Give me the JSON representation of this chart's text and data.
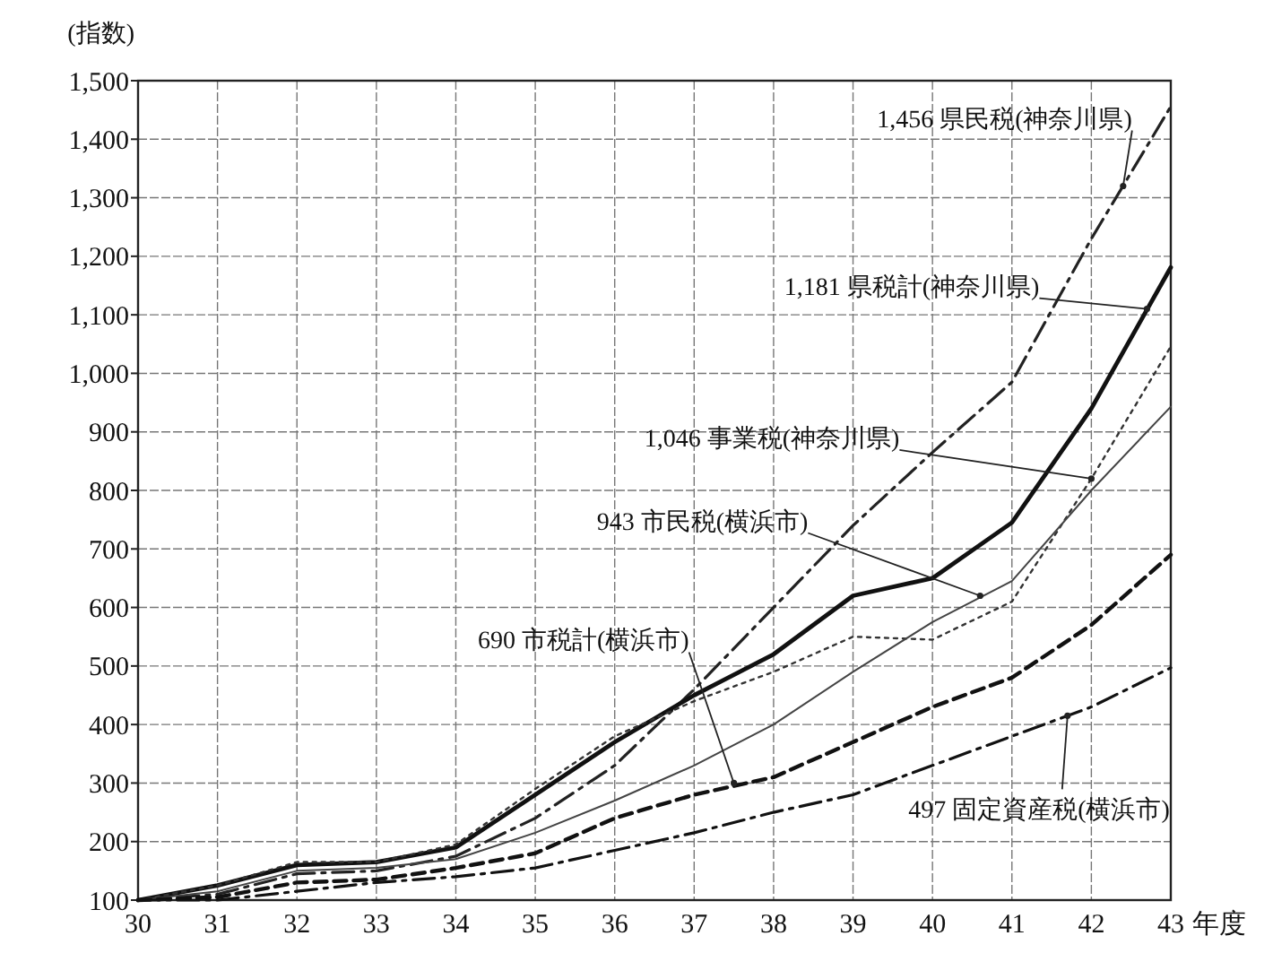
{
  "chart_data": {
    "type": "line",
    "ylabel": "(指数)",
    "xlabel": "年度",
    "x": [
      30,
      31,
      32,
      33,
      34,
      35,
      36,
      37,
      38,
      39,
      40,
      41,
      42,
      43
    ],
    "xlim": [
      30,
      43
    ],
    "xticks": [
      30,
      31,
      32,
      33,
      34,
      35,
      36,
      37,
      38,
      39,
      40,
      41,
      42,
      43
    ],
    "ylim": [
      100,
      1500
    ],
    "yticks": [
      100,
      200,
      300,
      400,
      500,
      600,
      700,
      800,
      900,
      {
        "value": 1000,
        "label": "1,000"
      },
      {
        "value": 1100,
        "label": "1,100"
      },
      {
        "value": 1200,
        "label": "1,200"
      },
      {
        "value": 1300,
        "label": "1,300"
      },
      {
        "value": 1400,
        "label": "1,400"
      },
      {
        "value": 1500,
        "label": "1,500"
      }
    ],
    "grid": true,
    "marker": "none",
    "series": [
      {
        "color": "#222222",
        "line_style": "dashdot",
        "values": [
          100,
          110,
          145,
          150,
          175,
          240,
          330,
          460,
          600,
          740,
          865,
          985,
          1230,
          1456
        ]
      },
      {
        "color": "#111111",
        "line_style": "solid",
        "values": [
          100,
          125,
          160,
          165,
          190,
          280,
          370,
          450,
          520,
          620,
          650,
          745,
          940,
          1181
        ]
      },
      {
        "color": "#333333",
        "line_style": "dotted",
        "values": [
          100,
          125,
          165,
          165,
          195,
          290,
          380,
          440,
          490,
          550,
          545,
          610,
          820,
          1046
        ]
      },
      {
        "color": "#444444",
        "line_style": "solid",
        "values": [
          100,
          115,
          150,
          155,
          170,
          215,
          270,
          330,
          400,
          490,
          575,
          645,
          800,
          943
        ]
      },
      {
        "color": "#111111",
        "line_style": "dashed",
        "values": [
          100,
          105,
          130,
          135,
          155,
          180,
          240,
          280,
          310,
          370,
          430,
          480,
          570,
          690
        ]
      },
      {
        "color": "#111111",
        "line_style": "dashdot",
        "values": [
          100,
          100,
          115,
          130,
          140,
          155,
          185,
          215,
          250,
          280,
          330,
          380,
          430,
          497
        ]
      }
    ],
    "annotations": [
      {
        "text": "1,456 県民税(神奈川県)",
        "x": 42.4,
        "y": 1320
      },
      {
        "text": "1,181 県税計(神奈川県)",
        "x": 42.7,
        "y": 1110
      },
      {
        "text": "1,046 事業税(神奈川県)",
        "x": 42,
        "y": 820
      },
      {
        "text": "943 市民税(横浜市)",
        "x": 40.6,
        "y": 620
      },
      {
        "text": "690 市税計(横浜市)",
        "x": 37.5,
        "y": 300
      },
      {
        "text": "497 固定資産税(横浜市)",
        "x": 41.7,
        "y": 415
      }
    ]
  }
}
